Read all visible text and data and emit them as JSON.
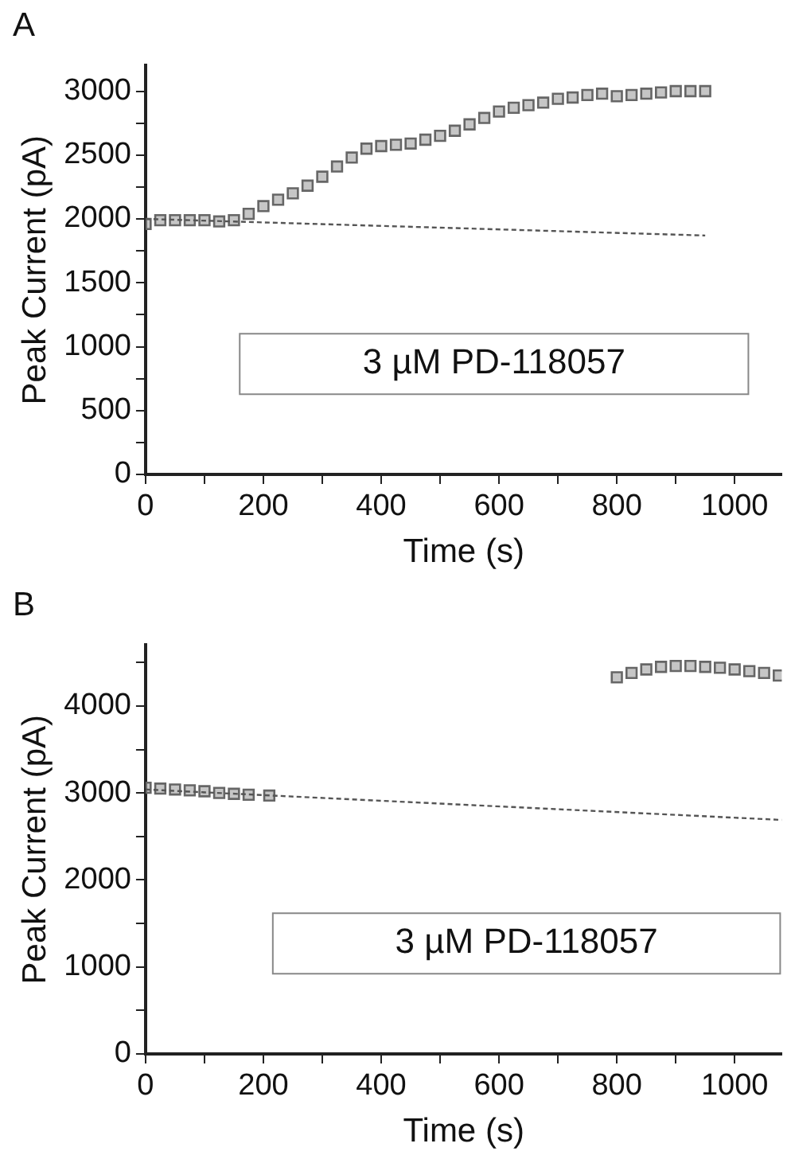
{
  "chart_data": [
    {
      "type": "scatter",
      "title": "A",
      "xlabel": "Time (s)",
      "ylabel": "Peak Current (pA)",
      "xlim": [
        0,
        1080
      ],
      "ylim": [
        0,
        3200
      ],
      "grid": false,
      "legend": false,
      "xticks": [
        0,
        {
          "value": 100,
          "label": null
        },
        200,
        {
          "value": 300,
          "label": null
        },
        400,
        {
          "value": 500,
          "label": null
        },
        600,
        {
          "value": 700,
          "label": null
        },
        800,
        {
          "value": 900,
          "label": null
        },
        1000
      ],
      "yticks": [
        0,
        {
          "value": 250,
          "label": null
        },
        500,
        {
          "value": 750,
          "label": null
        },
        1000,
        {
          "value": 1250,
          "label": null
        },
        1500,
        {
          "value": 1750,
          "label": null
        },
        2000,
        {
          "value": 2250,
          "label": null
        },
        2500,
        {
          "value": 2750,
          "label": null
        },
        3000
      ],
      "annotations": [
        "3 µM PD-118057"
      ],
      "series": [
        {
          "type": "scatter",
          "marker": "square",
          "color": "#666666",
          "x": [
            0,
            25,
            50,
            75,
            100,
            125,
            150,
            175,
            200,
            225,
            250,
            275,
            300,
            325,
            350,
            375,
            400,
            425,
            450,
            475,
            500,
            525,
            550,
            575,
            600,
            625,
            650,
            675,
            700,
            725,
            750,
            775,
            800,
            825,
            850,
            875,
            900,
            925,
            950
          ],
          "values": [
            1960,
            1990,
            1990,
            1990,
            1990,
            1980,
            1990,
            2040,
            2100,
            2150,
            2200,
            2260,
            2330,
            2410,
            2480,
            2550,
            2570,
            2580,
            2590,
            2620,
            2650,
            2690,
            2740,
            2790,
            2840,
            2870,
            2890,
            2910,
            2940,
            2950,
            2970,
            2980,
            2960,
            2970,
            2980,
            2990,
            3000,
            3000,
            3000
          ]
        },
        {
          "type": "line",
          "marker": "none",
          "line_style": "dashed",
          "color": "#555555",
          "x": [
            0,
            950
          ],
          "values": [
            2000,
            1870
          ]
        }
      ]
    },
    {
      "type": "scatter",
      "title": "B",
      "xlabel": "Time (s)",
      "ylabel": "Peak Current (pA)",
      "xlim": [
        0,
        1080
      ],
      "ylim": [
        0,
        4700
      ],
      "grid": false,
      "legend": false,
      "xticks": [
        0,
        {
          "value": 100,
          "label": null
        },
        200,
        {
          "value": 300,
          "label": null
        },
        400,
        {
          "value": 500,
          "label": null
        },
        600,
        {
          "value": 700,
          "label": null
        },
        800,
        {
          "value": 900,
          "label": null
        },
        1000
      ],
      "yticks": [
        0,
        {
          "value": 500,
          "label": null
        },
        1000,
        {
          "value": 1500,
          "label": null
        },
        2000,
        {
          "value": 2500,
          "label": null
        },
        3000,
        {
          "value": 3500,
          "label": null
        },
        4000,
        {
          "value": 4500,
          "label": null
        }
      ],
      "annotations": [
        "3 µM PD-118057"
      ],
      "series": [
        {
          "type": "scatter",
          "marker": "square",
          "color": "#666666",
          "x": [
            0,
            25,
            50,
            75,
            100,
            125,
            150,
            175,
            210,
            800,
            825,
            850,
            875,
            900,
            925,
            950,
            975,
            1000,
            1025,
            1050,
            1075
          ],
          "values": [
            3060,
            3050,
            3040,
            3030,
            3020,
            3000,
            2990,
            2980,
            2970,
            4330,
            4380,
            4420,
            4450,
            4460,
            4460,
            4450,
            4440,
            4420,
            4400,
            4380,
            4350
          ]
        },
        {
          "type": "line",
          "marker": "none",
          "line_style": "dashed",
          "color": "#555555",
          "x": [
            0,
            1080
          ],
          "values": [
            3040,
            2690
          ]
        }
      ]
    }
  ]
}
